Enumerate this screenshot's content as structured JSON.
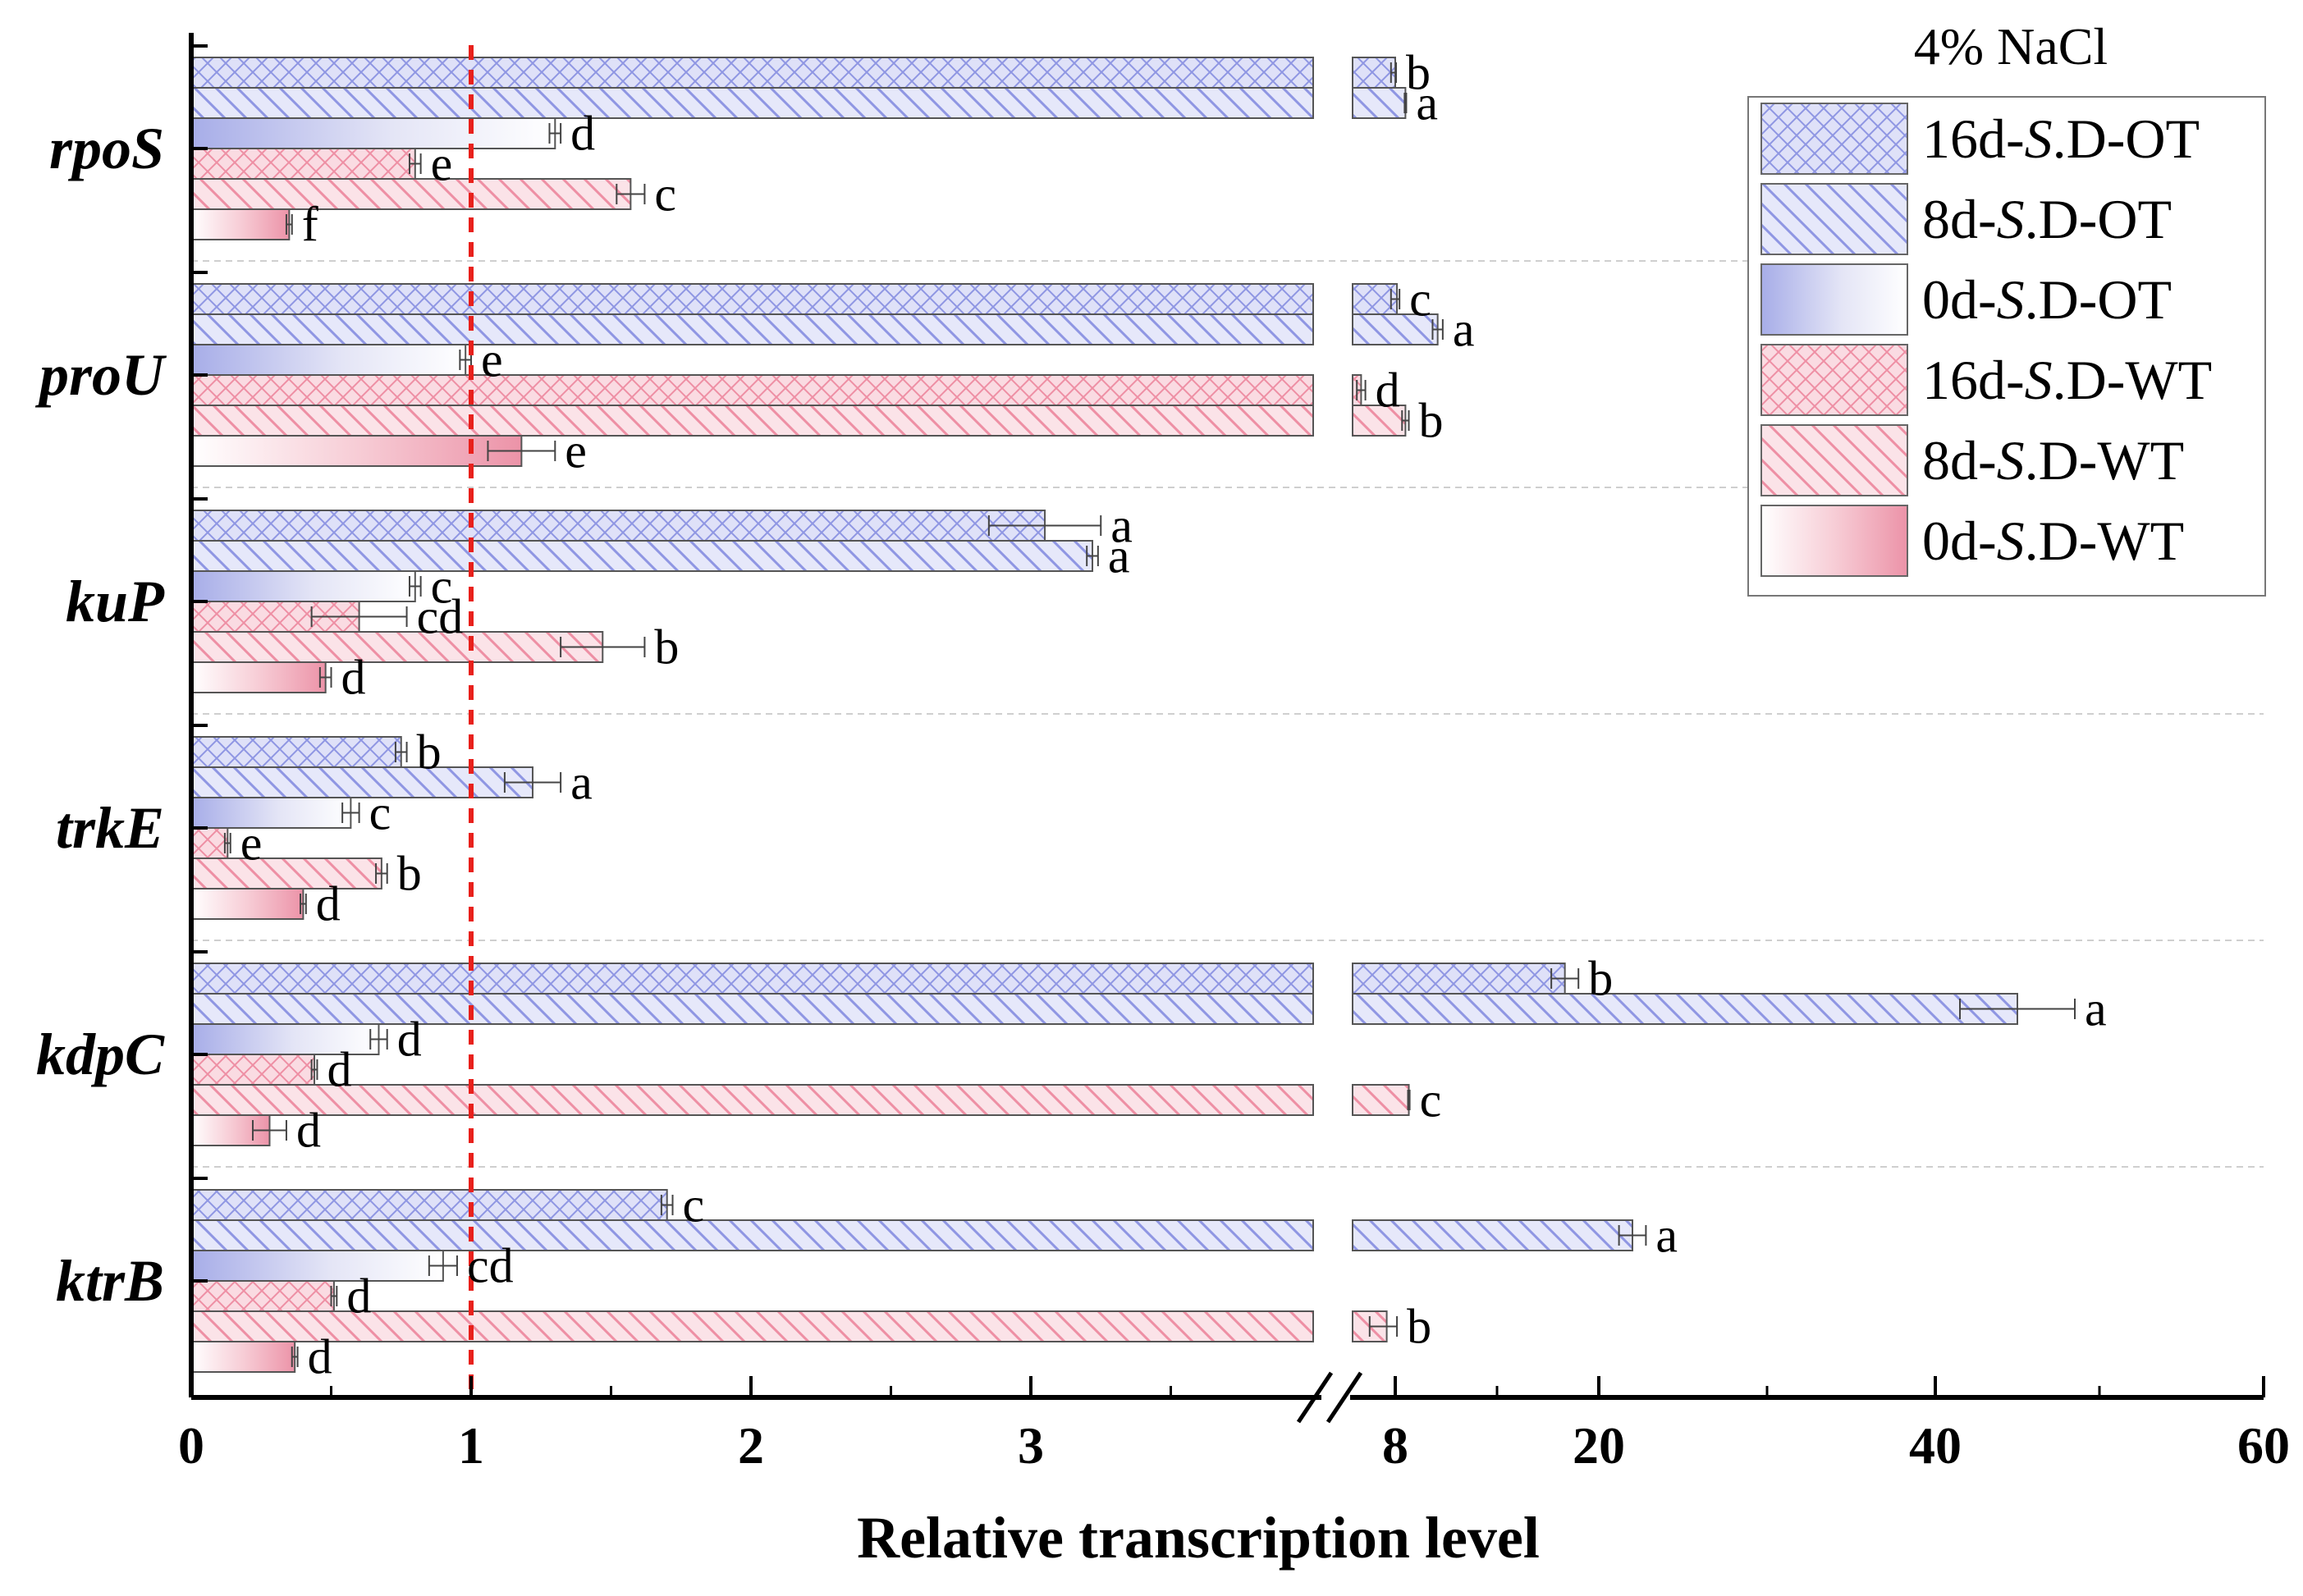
{
  "chart_data": {
    "type": "bar",
    "orientation": "horizontal",
    "title": "4% NaCl",
    "xlabel": "Relative transcription level",
    "ylabel": "",
    "categories": [
      "rpoS",
      "proU",
      "kuP",
      "trkE",
      "kdpC",
      "ktrB"
    ],
    "x_axis": {
      "broken": true,
      "segments": [
        {
          "range": [
            0,
            4
          ],
          "ticks": [
            "0",
            "1",
            "2",
            "3"
          ]
        },
        {
          "range": [
            7.5,
            60
          ],
          "ticks": [
            "8",
            "20",
            "40",
            "60"
          ]
        }
      ]
    },
    "reference_line": {
      "x": 1,
      "style": "dashed",
      "color": "#e8201b"
    },
    "series": [
      {
        "name": "16d-S.D-OT",
        "values": [
          8.0,
          8.1,
          3.05,
          0.75,
          18.0,
          1.7
        ],
        "errors": [
          0.05,
          0.15,
          0.2,
          0.02,
          0.8,
          0.02
        ],
        "letters": [
          "b",
          "c",
          "a",
          "b",
          "b",
          "c"
        ]
      },
      {
        "name": "8d-S.D-OT",
        "values": [
          8.6,
          10.5,
          3.22,
          1.22,
          45.0,
          22.0
        ],
        "errors": [
          0.05,
          0.3,
          0.02,
          0.1,
          3.5,
          0.8
        ],
        "letters": [
          "a",
          "a",
          "a",
          "a",
          "a",
          "a"
        ]
      },
      {
        "name": "0d-S.D-OT",
        "values": [
          1.3,
          0.98,
          0.8,
          0.57,
          0.67,
          0.9
        ],
        "errors": [
          0.02,
          0.02,
          0.02,
          0.03,
          0.03,
          0.05
        ],
        "letters": [
          "d",
          "e",
          "c",
          "c",
          "d",
          "cd"
        ]
      },
      {
        "name": "16d-S.D-WT",
        "values": [
          0.8,
          7.6,
          0.6,
          0.13,
          0.44,
          0.51
        ],
        "errors": [
          0.02,
          0.05,
          0.17,
          0.01,
          0.01,
          0.01
        ],
        "letters": [
          "e",
          "d",
          "cd",
          "e",
          "d",
          "d"
        ]
      },
      {
        "name": "8d-S.D-WT",
        "values": [
          1.57,
          8.6,
          1.47,
          0.68,
          8.8,
          7.9
        ],
        "errors": [
          0.05,
          0.2,
          0.15,
          0.02,
          0.05,
          0.2
        ],
        "letters": [
          "c",
          "b",
          "b",
          "b",
          "c",
          "b"
        ]
      },
      {
        "name": "0d-S.D-WT",
        "values": [
          0.35,
          1.18,
          0.48,
          0.4,
          0.28,
          0.37
        ],
        "errors": [
          0.01,
          0.12,
          0.02,
          0.01,
          0.06,
          0.01
        ],
        "letters": [
          "f",
          "e",
          "d",
          "d",
          "d",
          "d"
        ]
      }
    ],
    "series_labels": [
      {
        "prefix": "16d-",
        "italic": "S",
        "suffix": ".D-OT"
      },
      {
        "prefix": "8d-",
        "italic": "S",
        "suffix": ".D-OT"
      },
      {
        "prefix": "0d-",
        "italic": "S",
        "suffix": ".D-OT"
      },
      {
        "prefix": "16d-",
        "italic": "S",
        "suffix": ".D-WT"
      },
      {
        "prefix": "8d-",
        "italic": "S",
        "suffix": ".D-WT"
      },
      {
        "prefix": "0d-",
        "italic": "S",
        "suffix": ".D-WT"
      }
    ],
    "series_style": [
      {
        "color": "#8f96e3",
        "pattern": "crosshatch"
      },
      {
        "color": "#8f96e3",
        "pattern": "diagonal"
      },
      {
        "color": "#8f96e3",
        "pattern": "gradient"
      },
      {
        "color": "#ee8fa4",
        "pattern": "crosshatch"
      },
      {
        "color": "#ee8fa4",
        "pattern": "diagonal"
      },
      {
        "color": "#ee8fa4",
        "pattern": "gradient"
      }
    ],
    "legend_position": "top-right",
    "grid": false
  }
}
